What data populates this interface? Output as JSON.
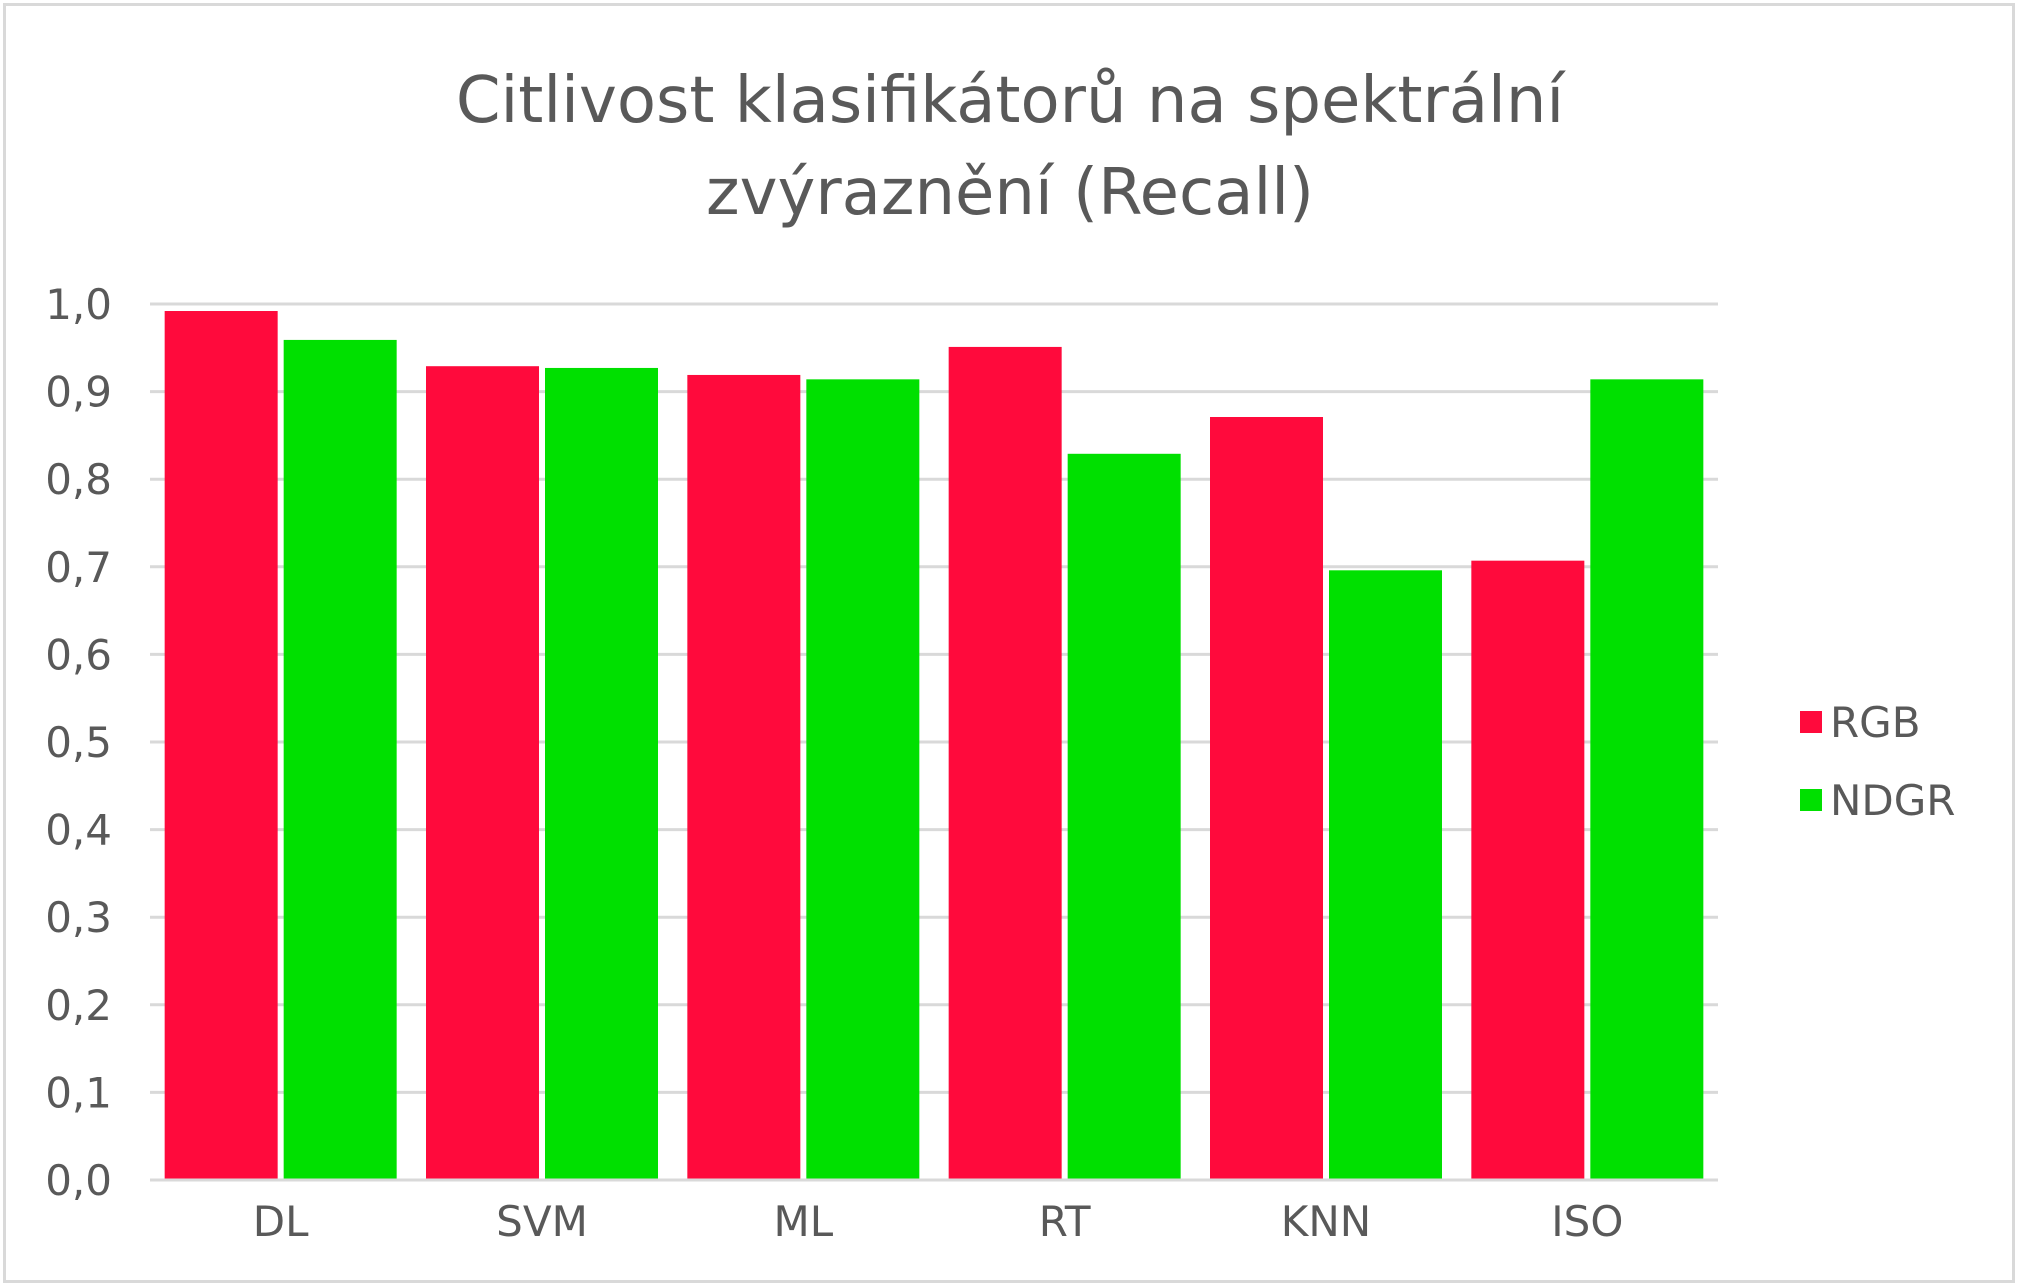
{
  "chart_data": {
    "type": "bar",
    "title": [
      "Citlivost klasifikátorů na spektrální",
      "zvýraznění (Recall)"
    ],
    "categories": [
      "DL",
      "SVM",
      "ML",
      "RT",
      "KNN",
      "ISO"
    ],
    "series": [
      {
        "name": "RGB",
        "color": "#ff0a3c",
        "values": [
          0.992,
          0.929,
          0.919,
          0.951,
          0.871,
          0.707
        ]
      },
      {
        "name": "NDGR",
        "color": "#00e000",
        "values": [
          0.959,
          0.927,
          0.914,
          0.829,
          0.696,
          0.914
        ]
      }
    ],
    "y_ticks": [
      "0,0",
      "0,1",
      "0,2",
      "0,3",
      "0,4",
      "0,5",
      "0,6",
      "0,7",
      "0,8",
      "0,9",
      "1,0"
    ],
    "ylim": [
      0,
      1.0
    ],
    "grid": true,
    "legend_position": "right"
  }
}
